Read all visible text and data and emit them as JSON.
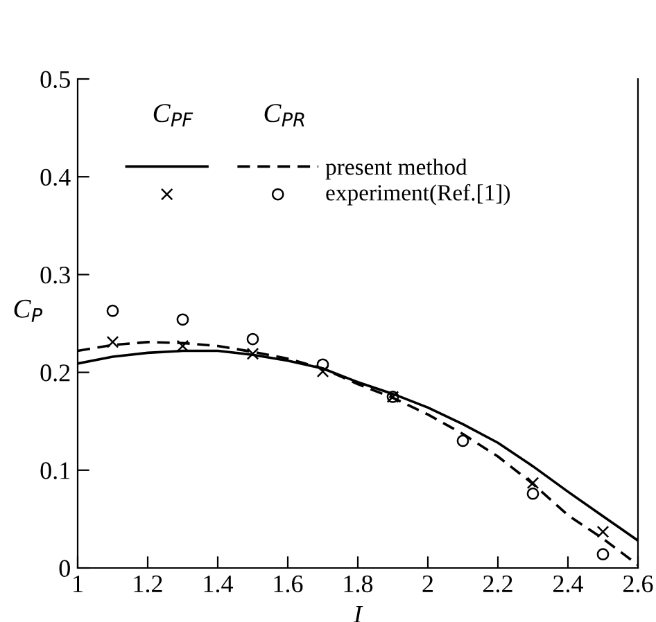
{
  "chart_data": {
    "type": "line",
    "xlabel": "I",
    "ylabel": "C$_{P}$",
    "xlim": [
      1,
      2.6
    ],
    "xticks": [
      1,
      1.2,
      1.4,
      1.6,
      1.8,
      2,
      2.2,
      2.4,
      2.6
    ],
    "ylim": [
      0,
      0.5
    ],
    "yticks": [
      0,
      0.1,
      0.2,
      0.3,
      0.4,
      0.5
    ],
    "grid": false,
    "legend": "top",
    "annotations": [
      "C$_{PF}$",
      "C$_{PR}$"
    ],
    "series": [
      {
        "color": "#000000",
        "line_style": "solid",
        "marker": "none",
        "x": [
          1,
          1.1,
          1.2,
          1.3,
          1.4,
          1.5,
          1.6,
          1.7,
          1.8,
          1.9,
          2.0,
          2.1,
          2.2,
          2.3,
          2.4,
          2.5,
          2.6
        ],
        "values": [
          0.209,
          0.216,
          0.22,
          0.222,
          0.222,
          0.218,
          0.212,
          0.204,
          0.19,
          0.178,
          0.164,
          0.147,
          0.128,
          0.104,
          0.078,
          0.053,
          0.028
        ]
      },
      {
        "name": "present method",
        "color": "#000000",
        "line_style": "dashed",
        "marker": "none",
        "x": [
          1,
          1.1,
          1.2,
          1.3,
          1.4,
          1.5,
          1.6,
          1.7,
          1.8,
          1.9,
          2.0,
          2.1,
          2.2,
          2.3,
          2.4,
          2.5,
          2.6
        ],
        "values": [
          0.222,
          0.228,
          0.231,
          0.23,
          0.227,
          0.221,
          0.214,
          0.204,
          0.188,
          0.174,
          0.157,
          0.137,
          0.114,
          0.086,
          0.054,
          0.03,
          0.003
        ]
      },
      {
        "type": "scatter",
        "color": "#000000",
        "marker": "cross",
        "x": [
          1.1,
          1.3,
          1.5,
          1.7,
          1.9,
          2.3,
          2.5
        ],
        "values": [
          0.231,
          0.227,
          0.219,
          0.201,
          0.175,
          0.087,
          0.037
        ]
      },
      {
        "type": "scatter",
        "name": "experiment(Ref.[1])",
        "color": "#000000",
        "marker": "circle",
        "x": [
          1.1,
          1.3,
          1.5,
          1.7,
          1.9,
          2.1,
          2.3,
          2.5
        ],
        "values": [
          0.263,
          0.254,
          0.234,
          0.208,
          0.175,
          0.13,
          0.076,
          0.014
        ]
      }
    ]
  }
}
